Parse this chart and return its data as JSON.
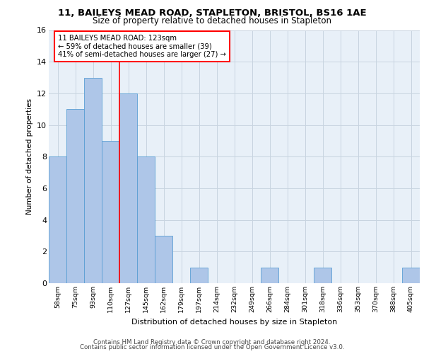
{
  "title1": "11, BAILEYS MEAD ROAD, STAPLETON, BRISTOL, BS16 1AE",
  "title2": "Size of property relative to detached houses in Stapleton",
  "xlabel": "Distribution of detached houses by size in Stapleton",
  "ylabel": "Number of detached properties",
  "bar_labels": [
    "58sqm",
    "75sqm",
    "93sqm",
    "110sqm",
    "127sqm",
    "145sqm",
    "162sqm",
    "179sqm",
    "197sqm",
    "214sqm",
    "232sqm",
    "249sqm",
    "266sqm",
    "284sqm",
    "301sqm",
    "318sqm",
    "336sqm",
    "353sqm",
    "370sqm",
    "388sqm",
    "405sqm"
  ],
  "bar_values": [
    8,
    11,
    13,
    9,
    12,
    8,
    3,
    0,
    1,
    0,
    0,
    0,
    1,
    0,
    0,
    1,
    0,
    0,
    0,
    0,
    1
  ],
  "bar_color": "#aec6e8",
  "bar_edge_color": "#5a9fd4",
  "annotation_text": "11 BAILEYS MEAD ROAD: 123sqm\n← 59% of detached houses are smaller (39)\n41% of semi-detached houses are larger (27) →",
  "annotation_box_color": "white",
  "annotation_box_edge_color": "red",
  "vline_color": "red",
  "vline_x": 3.5,
  "ylim": [
    0,
    16
  ],
  "yticks": [
    0,
    2,
    4,
    6,
    8,
    10,
    12,
    14,
    16
  ],
  "grid_color": "#c8d4e0",
  "bg_color": "#e8f0f8",
  "footer1": "Contains HM Land Registry data © Crown copyright and database right 2024.",
  "footer2": "Contains public sector information licensed under the Open Government Licence v3.0."
}
